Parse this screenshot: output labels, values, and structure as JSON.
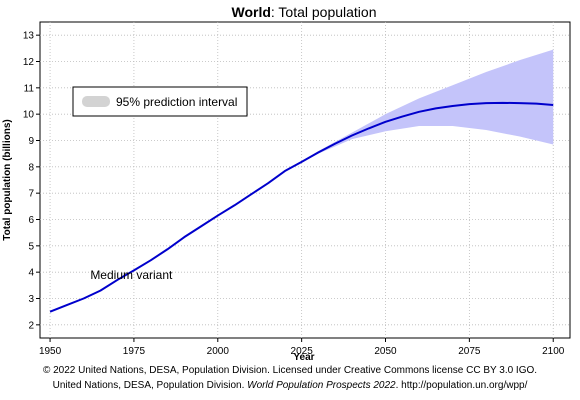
{
  "chart_data": {
    "type": "line",
    "title_bold": "World",
    "title_rest": ": Total population",
    "xlabel": "Year",
    "ylabel": "Total population (billions)",
    "xlim": [
      1947,
      2105
    ],
    "ylim": [
      1.5,
      13.5
    ],
    "x_ticks": [
      1950,
      1975,
      2000,
      2025,
      2050,
      2075,
      2100
    ],
    "y_ticks": [
      2,
      3,
      4,
      5,
      6,
      7,
      8,
      9,
      10,
      11,
      12,
      13
    ],
    "grid": true,
    "series": [
      {
        "name": "Medium variant",
        "color": "#0000cc",
        "x": [
          1950,
          1955,
          1960,
          1965,
          1970,
          1975,
          1980,
          1985,
          1990,
          1995,
          2000,
          2005,
          2010,
          2015,
          2020,
          2025,
          2030,
          2035,
          2040,
          2045,
          2050,
          2055,
          2060,
          2065,
          2070,
          2075,
          2080,
          2085,
          2090,
          2095,
          2100
        ],
        "y": [
          2.5,
          2.75,
          3.0,
          3.3,
          3.7,
          4.07,
          4.45,
          4.87,
          5.33,
          5.74,
          6.15,
          6.54,
          6.96,
          7.38,
          7.84,
          8.19,
          8.55,
          8.88,
          9.19,
          9.46,
          9.71,
          9.91,
          10.09,
          10.22,
          10.31,
          10.38,
          10.42,
          10.43,
          10.42,
          10.4,
          10.35
        ]
      }
    ],
    "prediction_interval": {
      "name": "95% prediction interval",
      "color": "#c4c4fa",
      "x": [
        2022,
        2030,
        2040,
        2050,
        2060,
        2070,
        2080,
        2090,
        2100
      ],
      "lower": [
        7.97,
        8.5,
        9.05,
        9.35,
        9.55,
        9.55,
        9.4,
        9.15,
        8.85
      ],
      "upper": [
        7.97,
        8.6,
        9.3,
        10.0,
        10.6,
        11.1,
        11.6,
        12.05,
        12.45
      ]
    },
    "annotations": [
      {
        "text": "Medium variant",
        "x": 1962,
        "y": 3.75
      }
    ],
    "legend": {
      "label": "95% prediction interval",
      "swatch_color": "#d3d3d3",
      "placement": "upper-left"
    }
  },
  "footer": {
    "line1": "© 2022 United Nations, DESA, Population Division. Licensed under Creative Commons license CC BY 3.0 IGO.",
    "line2_before": "United Nations, DESA, Population Division. ",
    "line2_italic": "World Population Prospects 2022",
    "line2_after": ". http://population.un.org/wpp/"
  }
}
